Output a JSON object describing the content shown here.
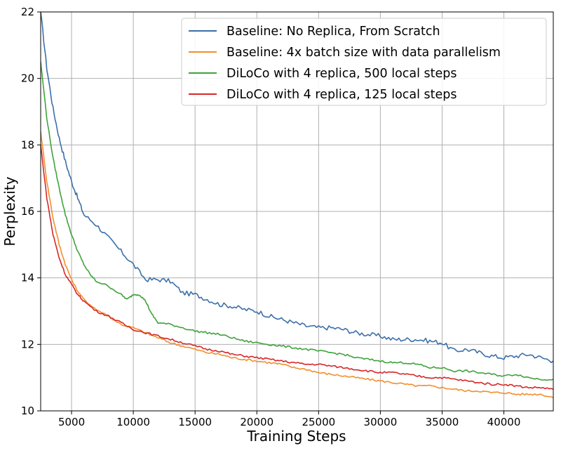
{
  "chart_data": {
    "type": "line",
    "title": "",
    "xlabel": "Training Steps",
    "ylabel": "Perplexity",
    "xlim": [
      2500,
      44000
    ],
    "ylim": [
      10,
      22
    ],
    "xticks": [
      5000,
      10000,
      15000,
      20000,
      25000,
      30000,
      35000,
      40000
    ],
    "xtick_labels": [
      "5000",
      "10000",
      "15000",
      "20000",
      "25000",
      "30000",
      "35000",
      "40000"
    ],
    "yticks": [
      10,
      12,
      14,
      16,
      18,
      20,
      22
    ],
    "ytick_labels": [
      "10",
      "12",
      "14",
      "16",
      "18",
      "20",
      "22"
    ],
    "grid": true,
    "legend_position": "top-right",
    "series": [
      {
        "name": "Baseline: No Replica, From Scratch",
        "color": "#3b6fa8",
        "x": [
          2500,
          3000,
          3500,
          4000,
          4500,
          5000,
          5500,
          6000,
          7000,
          8000,
          9000,
          10000,
          11000,
          12000,
          13000,
          14000,
          15000,
          16000,
          17000,
          18000,
          19000,
          20000,
          21000,
          22000,
          23000,
          24000,
          25000,
          26000,
          27000,
          28000,
          29000,
          30000,
          31000,
          32000,
          33000,
          34000,
          35000,
          36000,
          37000,
          38000,
          39000,
          40000,
          41000,
          42000,
          43000,
          44000
        ],
        "y": [
          22.0,
          20.3,
          19.1,
          18.2,
          17.5,
          16.9,
          16.4,
          15.9,
          15.6,
          15.2,
          14.8,
          14.4,
          13.95,
          13.95,
          13.9,
          13.55,
          13.5,
          13.35,
          13.2,
          13.15,
          13.05,
          13.0,
          12.85,
          12.75,
          12.65,
          12.55,
          12.5,
          12.5,
          12.45,
          12.35,
          12.3,
          12.25,
          12.15,
          12.15,
          12.15,
          12.1,
          12.05,
          11.8,
          11.85,
          11.75,
          11.65,
          11.6,
          11.65,
          11.7,
          11.6,
          11.5
        ]
      },
      {
        "name": "Baseline: 4x batch size with data parallelism",
        "color": "#f28e2b",
        "x": [
          2500,
          3000,
          3500,
          4000,
          4500,
          5000,
          5500,
          6000,
          7000,
          8000,
          9000,
          10000,
          11000,
          12000,
          13000,
          14000,
          15000,
          16000,
          17000,
          18000,
          19000,
          20000,
          21000,
          22000,
          23000,
          24000,
          25000,
          26000,
          27000,
          28000,
          29000,
          30000,
          31000,
          32000,
          33000,
          34000,
          35000,
          36000,
          37000,
          38000,
          39000,
          40000,
          41000,
          42000,
          43000,
          44000
        ],
        "y": [
          18.4,
          16.9,
          15.8,
          15.0,
          14.4,
          13.95,
          13.6,
          13.35,
          13.05,
          12.85,
          12.6,
          12.5,
          12.35,
          12.2,
          12.05,
          11.95,
          11.85,
          11.75,
          11.7,
          11.6,
          11.55,
          11.5,
          11.45,
          11.4,
          11.3,
          11.25,
          11.15,
          11.1,
          11.05,
          11.0,
          10.95,
          10.9,
          10.85,
          10.8,
          10.75,
          10.75,
          10.7,
          10.65,
          10.6,
          10.6,
          10.55,
          10.55,
          10.5,
          10.5,
          10.5,
          10.4
        ]
      },
      {
        "name": "DiLoCo with 4 replica, 500 local steps",
        "color": "#3fa23a",
        "x": [
          2500,
          3000,
          3500,
          4000,
          4500,
          5000,
          5500,
          6000,
          6500,
          7000,
          8000,
          9000,
          9500,
          10000,
          10500,
          11000,
          11500,
          12000,
          13000,
          14000,
          15000,
          16000,
          17000,
          18000,
          19000,
          20000,
          21000,
          22000,
          23000,
          24000,
          25000,
          26000,
          27000,
          28000,
          29000,
          30000,
          31000,
          32000,
          33000,
          34000,
          35000,
          36000,
          37000,
          38000,
          39000,
          40000,
          41000,
          42000,
          43000,
          44000
        ],
        "y": [
          20.5,
          18.8,
          17.6,
          16.7,
          15.9,
          15.3,
          14.8,
          14.4,
          14.1,
          13.9,
          13.75,
          13.5,
          13.35,
          13.5,
          13.5,
          13.3,
          12.9,
          12.65,
          12.6,
          12.5,
          12.4,
          12.35,
          12.3,
          12.2,
          12.1,
          12.05,
          12.0,
          11.95,
          11.9,
          11.85,
          11.8,
          11.75,
          11.7,
          11.6,
          11.55,
          11.5,
          11.45,
          11.45,
          11.4,
          11.3,
          11.3,
          11.2,
          11.2,
          11.15,
          11.1,
          11.05,
          11.1,
          11.0,
          10.95,
          10.95
        ]
      },
      {
        "name": "DiLoCo with 4 replica, 125 local steps",
        "color": "#d62728",
        "x": [
          2500,
          3000,
          3500,
          4000,
          4500,
          5000,
          5500,
          6000,
          7000,
          8000,
          9000,
          10000,
          11000,
          12000,
          13000,
          14000,
          15000,
          16000,
          17000,
          18000,
          19000,
          20000,
          21000,
          22000,
          23000,
          24000,
          25000,
          26000,
          27000,
          28000,
          29000,
          30000,
          31000,
          32000,
          33000,
          34000,
          35000,
          36000,
          37000,
          38000,
          39000,
          40000,
          41000,
          42000,
          43000,
          44000
        ],
        "y": [
          18.0,
          16.4,
          15.3,
          14.6,
          14.1,
          13.8,
          13.5,
          13.3,
          13.0,
          12.85,
          12.65,
          12.45,
          12.35,
          12.25,
          12.15,
          12.05,
          11.95,
          11.85,
          11.8,
          11.7,
          11.65,
          11.6,
          11.55,
          11.5,
          11.45,
          11.4,
          11.4,
          11.35,
          11.3,
          11.25,
          11.2,
          11.15,
          11.15,
          11.1,
          11.05,
          11.0,
          11.0,
          10.95,
          10.9,
          10.85,
          10.8,
          10.8,
          10.75,
          10.7,
          10.7,
          10.65
        ]
      }
    ]
  }
}
